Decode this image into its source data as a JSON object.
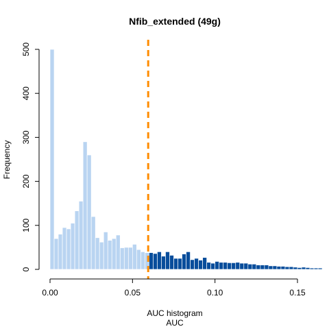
{
  "chart_data": {
    "type": "bar",
    "title": "Nfib_extended (49g)",
    "xlabel_lines": [
      "AUC histogram",
      "AUC"
    ],
    "ylabel": "Frequency",
    "xlim": [
      0.0,
      0.15
    ],
    "ylim": [
      0,
      500
    ],
    "x_ticks": [
      0.0,
      0.05,
      0.1,
      0.15
    ],
    "x_tick_labels": [
      "0.00",
      "0.05",
      "0.10",
      "0.15"
    ],
    "y_ticks": [
      0,
      100,
      200,
      300,
      400,
      500
    ],
    "y_tick_labels": [
      "0",
      "100",
      "200",
      "300",
      "400",
      "500"
    ],
    "bin_start": 0.0,
    "bin_width": 0.0025,
    "counts": [
      500,
      70,
      80,
      95,
      92,
      105,
      133,
      155,
      290,
      260,
      120,
      72,
      62,
      85,
      66,
      70,
      78,
      49,
      50,
      50,
      57,
      45,
      40,
      38,
      38,
      36,
      40,
      30,
      40,
      32,
      25,
      25,
      35,
      40,
      22,
      25,
      21,
      27,
      16,
      14,
      18,
      16,
      16,
      15,
      15,
      16,
      14,
      14,
      12,
      12,
      10,
      10,
      10,
      8,
      8,
      7,
      7,
      6,
      6,
      5,
      4,
      5,
      4,
      3,
      3,
      3
    ],
    "threshold": 0.0595,
    "colors": {
      "below_threshold": "#b9d4f1",
      "above_threshold": "#084d9b",
      "bar_edge": "#ffffff",
      "threshold_line": "#ff8c00"
    }
  }
}
